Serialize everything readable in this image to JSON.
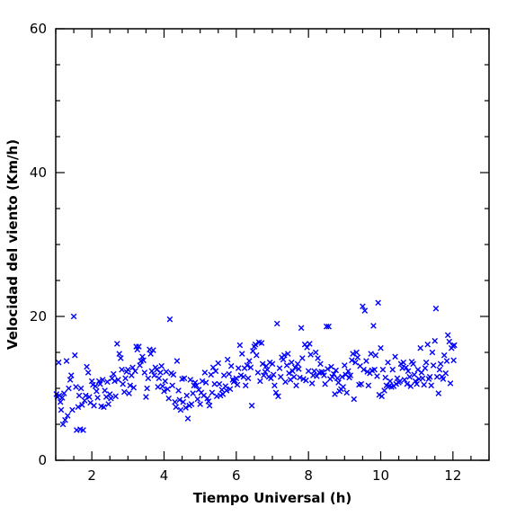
{
  "chart_data": {
    "type": "scatter",
    "title": "",
    "xlabel": "Tiempo Universal (h)",
    "ylabel": "Velocidad del viento (Km/h)",
    "xlim": [
      1,
      13
    ],
    "ylim": [
      0,
      60
    ],
    "x_major_ticks": [
      2,
      4,
      6,
      8,
      10,
      12
    ],
    "x_minor_step": 0.5,
    "y_major_ticks": [
      0,
      20,
      40,
      60
    ],
    "y_minor_step": 5,
    "marker": "x",
    "color": "#0000ff",
    "grid": false,
    "legend": "none",
    "points": [
      [
        1.02,
        9.2
      ],
      [
        1.05,
        8.8
      ],
      [
        1.08,
        13.6
      ],
      [
        1.1,
        9.0
      ],
      [
        1.13,
        8.1
      ],
      [
        1.15,
        7.0
      ],
      [
        1.18,
        8.7
      ],
      [
        1.2,
        5.0
      ],
      [
        1.23,
        9.3
      ],
      [
        1.26,
        5.6
      ],
      [
        1.3,
        13.8
      ],
      [
        1.33,
        6.2
      ],
      [
        1.36,
        10.0
      ],
      [
        1.4,
        11.2
      ],
      [
        1.43,
        11.8
      ],
      [
        1.46,
        7.0
      ],
      [
        1.5,
        20.0
      ],
      [
        1.53,
        14.6
      ],
      [
        1.56,
        10.2
      ],
      [
        1.58,
        4.2
      ],
      [
        1.62,
        7.4
      ],
      [
        1.65,
        9.0
      ],
      [
        1.68,
        4.3
      ],
      [
        1.7,
        10.0
      ],
      [
        1.73,
        7.7
      ],
      [
        1.76,
        4.2
      ],
      [
        1.8,
        8.3
      ],
      [
        1.83,
        9.0
      ],
      [
        1.86,
        13.0
      ],
      [
        1.9,
        12.2
      ],
      [
        1.93,
        8.8
      ],
      [
        1.96,
        8.0
      ],
      [
        2.0,
        11.0
      ],
      [
        2.03,
        10.5
      ],
      [
        2.06,
        7.6
      ],
      [
        2.1,
        10.3
      ],
      [
        2.13,
        9.6
      ],
      [
        2.16,
        8.7
      ],
      [
        2.2,
        11.0
      ],
      [
        2.23,
        10.6
      ],
      [
        2.26,
        7.5
      ],
      [
        2.3,
        11.2
      ],
      [
        2.33,
        7.4
      ],
      [
        2.36,
        9.7
      ],
      [
        2.4,
        8.8
      ],
      [
        2.43,
        10.9
      ],
      [
        2.46,
        7.8
      ],
      [
        2.5,
        9.2
      ],
      [
        2.53,
        8.6
      ],
      [
        2.56,
        11.4
      ],
      [
        2.6,
        12.0
      ],
      [
        2.63,
        11.0
      ],
      [
        2.66,
        8.9
      ],
      [
        2.7,
        16.2
      ],
      [
        2.73,
        11.2
      ],
      [
        2.76,
        14.8
      ],
      [
        2.8,
        14.2
      ],
      [
        2.83,
        12.6
      ],
      [
        2.86,
        10.6
      ],
      [
        2.9,
        9.5
      ],
      [
        2.93,
        11.4
      ],
      [
        2.96,
        12.3
      ],
      [
        3.0,
        12.6
      ],
      [
        3.03,
        9.3
      ],
      [
        3.06,
        10.4
      ],
      [
        3.1,
        11.8
      ],
      [
        3.13,
        12.9
      ],
      [
        3.16,
        10.1
      ],
      [
        3.2,
        12.4
      ],
      [
        3.23,
        15.8
      ],
      [
        3.26,
        15.4
      ],
      [
        3.3,
        15.8
      ],
      [
        3.33,
        13.2
      ],
      [
        3.36,
        13.8
      ],
      [
        3.4,
        14.4
      ],
      [
        3.43,
        13.9
      ],
      [
        3.46,
        12.2
      ],
      [
        3.5,
        8.8
      ],
      [
        3.53,
        10.0
      ],
      [
        3.56,
        11.4
      ],
      [
        3.6,
        15.4
      ],
      [
        3.63,
        14.8
      ],
      [
        3.66,
        12.4
      ],
      [
        3.7,
        15.3
      ],
      [
        3.73,
        11.8
      ],
      [
        3.76,
        12.9
      ],
      [
        3.8,
        12.6
      ],
      [
        3.83,
        10.2
      ],
      [
        3.86,
        11.4
      ],
      [
        3.9,
        12.2
      ],
      [
        3.93,
        13.1
      ],
      [
        3.96,
        10.3
      ],
      [
        4.0,
        9.6
      ],
      [
        4.03,
        11.0
      ],
      [
        4.06,
        12.3
      ],
      [
        4.1,
        9.9
      ],
      [
        4.13,
        8.6
      ],
      [
        4.16,
        19.6
      ],
      [
        4.2,
        12.1
      ],
      [
        4.23,
        10.4
      ],
      [
        4.26,
        11.9
      ],
      [
        4.3,
        8.1
      ],
      [
        4.33,
        7.4
      ],
      [
        4.36,
        13.8
      ],
      [
        4.4,
        9.7
      ],
      [
        4.43,
        8.4
      ],
      [
        4.46,
        7.0
      ],
      [
        4.5,
        11.3
      ],
      [
        4.53,
        8.1
      ],
      [
        4.56,
        11.4
      ],
      [
        4.6,
        7.3
      ],
      [
        4.63,
        9.0
      ],
      [
        4.66,
        5.8
      ],
      [
        4.7,
        7.6
      ],
      [
        4.73,
        11.2
      ],
      [
        4.76,
        7.8
      ],
      [
        4.8,
        9.3
      ],
      [
        4.83,
        10.4
      ],
      [
        4.86,
        10.8
      ],
      [
        4.9,
        10.4
      ],
      [
        4.93,
        8.5
      ],
      [
        4.96,
        9.8
      ],
      [
        5.0,
        7.8
      ],
      [
        5.03,
        9.4
      ],
      [
        5.06,
        11.0
      ],
      [
        5.1,
        9.0
      ],
      [
        5.13,
        12.2
      ],
      [
        5.16,
        10.8
      ],
      [
        5.2,
        8.6
      ],
      [
        5.23,
        8.2
      ],
      [
        5.26,
        7.6
      ],
      [
        5.3,
        11.9
      ],
      [
        5.33,
        9.4
      ],
      [
        5.36,
        12.9
      ],
      [
        5.4,
        10.6
      ],
      [
        5.43,
        12.4
      ],
      [
        5.46,
        8.9
      ],
      [
        5.5,
        13.5
      ],
      [
        5.53,
        10.6
      ],
      [
        5.56,
        9.0
      ],
      [
        5.6,
        9.8
      ],
      [
        5.63,
        9.2
      ],
      [
        5.66,
        11.8
      ],
      [
        5.7,
        10.3
      ],
      [
        5.73,
        9.7
      ],
      [
        5.76,
        14.0
      ],
      [
        5.8,
        12.0
      ],
      [
        5.83,
        9.9
      ],
      [
        5.86,
        13.1
      ],
      [
        5.9,
        11.2
      ],
      [
        5.93,
        10.9
      ],
      [
        5.96,
        11.1
      ],
      [
        6.0,
        11.4
      ],
      [
        6.03,
        10.5
      ],
      [
        6.06,
        12.8
      ],
      [
        6.1,
        16.0
      ],
      [
        6.13,
        11.8
      ],
      [
        6.16,
        14.8
      ],
      [
        6.2,
        11.6
      ],
      [
        6.23,
        12.8
      ],
      [
        6.26,
        10.4
      ],
      [
        6.3,
        13.2
      ],
      [
        6.33,
        11.4
      ],
      [
        6.36,
        13.8
      ],
      [
        6.4,
        12.9
      ],
      [
        6.43,
        7.6
      ],
      [
        6.46,
        15.2
      ],
      [
        6.5,
        15.8
      ],
      [
        6.53,
        16.1
      ],
      [
        6.56,
        14.6
      ],
      [
        6.6,
        12.2
      ],
      [
        6.63,
        16.4
      ],
      [
        6.66,
        11.0
      ],
      [
        6.7,
        16.3
      ],
      [
        6.73,
        13.4
      ],
      [
        6.76,
        11.8
      ],
      [
        6.8,
        12.3
      ],
      [
        6.83,
        13.1
      ],
      [
        6.86,
        12.6
      ],
      [
        6.9,
        11.6
      ],
      [
        6.93,
        13.6
      ],
      [
        6.96,
        11.4
      ],
      [
        7.0,
        13.4
      ],
      [
        7.03,
        11.9
      ],
      [
        7.06,
        10.4
      ],
      [
        7.1,
        9.4
      ],
      [
        7.13,
        19.0
      ],
      [
        7.16,
        8.9
      ],
      [
        7.2,
        12.8
      ],
      [
        7.23,
        11.6
      ],
      [
        7.26,
        14.3
      ],
      [
        7.3,
        14.0
      ],
      [
        7.33,
        14.6
      ],
      [
        7.36,
        10.9
      ],
      [
        7.4,
        13.2
      ],
      [
        7.43,
        14.8
      ],
      [
        7.46,
        12.1
      ],
      [
        7.5,
        11.2
      ],
      [
        7.53,
        13.6
      ],
      [
        7.56,
        12.4
      ],
      [
        7.6,
        11.6
      ],
      [
        7.63,
        12.9
      ],
      [
        7.66,
        10.4
      ],
      [
        7.7,
        13.4
      ],
      [
        7.73,
        12.7
      ],
      [
        7.76,
        11.5
      ],
      [
        7.8,
        18.4
      ],
      [
        7.83,
        14.2
      ],
      [
        7.86,
        11.3
      ],
      [
        7.9,
        16.1
      ],
      [
        7.93,
        11.1
      ],
      [
        7.96,
        15.7
      ],
      [
        8.0,
        12.4
      ],
      [
        8.03,
        16.2
      ],
      [
        8.06,
        14.7
      ],
      [
        8.1,
        10.7
      ],
      [
        8.13,
        11.8
      ],
      [
        8.16,
        12.4
      ],
      [
        8.2,
        15.0
      ],
      [
        8.23,
        11.7
      ],
      [
        8.26,
        14.2
      ],
      [
        8.3,
        12.2
      ],
      [
        8.33,
        13.4
      ],
      [
        8.36,
        12.3
      ],
      [
        8.4,
        12.2
      ],
      [
        8.43,
        11.8
      ],
      [
        8.46,
        10.6
      ],
      [
        8.5,
        18.6
      ],
      [
        8.53,
        12.7
      ],
      [
        8.56,
        18.6
      ],
      [
        8.6,
        11.3
      ],
      [
        8.63,
        13.0
      ],
      [
        8.66,
        11.6
      ],
      [
        8.7,
        12.0
      ],
      [
        8.73,
        9.2
      ],
      [
        8.76,
        12.5
      ],
      [
        8.8,
        11.4
      ],
      [
        8.83,
        10.8
      ],
      [
        8.86,
        9.6
      ],
      [
        8.9,
        9.9
      ],
      [
        8.93,
        11.6
      ],
      [
        8.96,
        10.2
      ],
      [
        9.0,
        13.2
      ],
      [
        9.03,
        11.9
      ],
      [
        9.06,
        9.4
      ],
      [
        9.1,
        12.4
      ],
      [
        9.13,
        11.5
      ],
      [
        9.16,
        11.8
      ],
      [
        9.2,
        13.9
      ],
      [
        9.23,
        14.8
      ],
      [
        9.26,
        8.5
      ],
      [
        9.3,
        13.6
      ],
      [
        9.33,
        15.0
      ],
      [
        9.36,
        14.3
      ],
      [
        9.4,
        10.5
      ],
      [
        9.43,
        13.1
      ],
      [
        9.46,
        10.6
      ],
      [
        9.5,
        21.4
      ],
      [
        9.53,
        12.6
      ],
      [
        9.56,
        20.8
      ],
      [
        9.6,
        13.8
      ],
      [
        9.63,
        12.3
      ],
      [
        9.66,
        10.4
      ],
      [
        9.7,
        12.1
      ],
      [
        9.73,
        14.8
      ],
      [
        9.76,
        12.5
      ],
      [
        9.8,
        18.7
      ],
      [
        9.83,
        12.6
      ],
      [
        9.86,
        14.6
      ],
      [
        9.9,
        11.7
      ],
      [
        9.93,
        21.9
      ],
      [
        9.96,
        9.1
      ],
      [
        10.0,
        15.6
      ],
      [
        10.03,
        8.9
      ],
      [
        10.06,
        12.6
      ],
      [
        10.1,
        9.7
      ],
      [
        10.13,
        11.5
      ],
      [
        10.16,
        10.4
      ],
      [
        10.2,
        13.6
      ],
      [
        10.23,
        10.3
      ],
      [
        10.26,
        11.0
      ],
      [
        10.3,
        10.2
      ],
      [
        10.33,
        12.6
      ],
      [
        10.36,
        10.3
      ],
      [
        10.4,
        14.4
      ],
      [
        10.43,
        10.6
      ],
      [
        10.46,
        11.4
      ],
      [
        10.5,
        10.8
      ],
      [
        10.53,
        11.0
      ],
      [
        10.56,
        13.4
      ],
      [
        10.6,
        12.8
      ],
      [
        10.63,
        13.6
      ],
      [
        10.66,
        11.2
      ],
      [
        10.7,
        12.9
      ],
      [
        10.73,
        10.6
      ],
      [
        10.76,
        12.4
      ],
      [
        10.8,
        11.6
      ],
      [
        10.83,
        10.3
      ],
      [
        10.86,
        13.7
      ],
      [
        10.9,
        13.4
      ],
      [
        10.93,
        11.9
      ],
      [
        10.96,
        11.0
      ],
      [
        11.0,
        10.6
      ],
      [
        11.03,
        12.6
      ],
      [
        11.06,
        11.3
      ],
      [
        11.1,
        15.6
      ],
      [
        11.13,
        12.2
      ],
      [
        11.16,
        11.4
      ],
      [
        11.2,
        10.5
      ],
      [
        11.23,
        12.8
      ],
      [
        11.26,
        13.6
      ],
      [
        11.3,
        16.1
      ],
      [
        11.33,
        11.3
      ],
      [
        11.36,
        11.6
      ],
      [
        11.4,
        10.4
      ],
      [
        11.43,
        15.0
      ],
      [
        11.46,
        13.2
      ],
      [
        11.5,
        16.6
      ],
      [
        11.53,
        21.1
      ],
      [
        11.56,
        11.6
      ],
      [
        11.6,
        9.3
      ],
      [
        11.63,
        12.6
      ],
      [
        11.66,
        13.4
      ],
      [
        11.7,
        11.6
      ],
      [
        11.73,
        11.3
      ],
      [
        11.76,
        14.6
      ],
      [
        11.8,
        12.1
      ],
      [
        11.83,
        13.8
      ],
      [
        11.86,
        17.4
      ],
      [
        11.9,
        16.5
      ],
      [
        11.93,
        10.7
      ],
      [
        11.96,
        15.6
      ],
      [
        12.0,
        15.9
      ],
      [
        12.02,
        13.9
      ],
      [
        12.04,
        16.0
      ]
    ]
  }
}
